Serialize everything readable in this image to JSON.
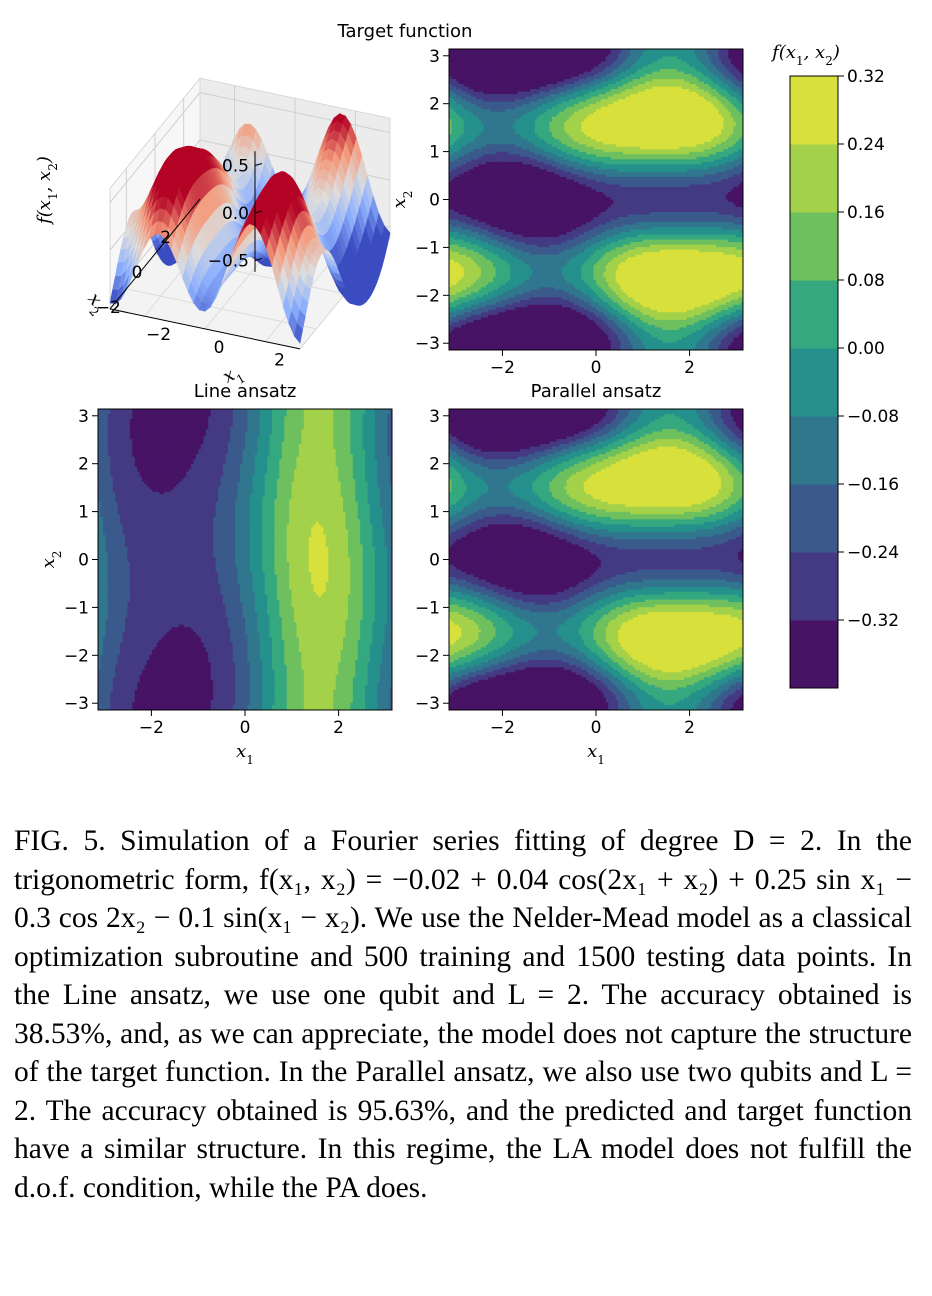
{
  "figure_label": "FIG. 5.",
  "caption": "Simulation of a Fourier series fitting of degree D = 2. In the trigonometric form, f(x₁, x₂) = −0.02 + 0.04 cos(2x₁ + x₂) + 0.25 sin x₁ − 0.3 cos 2x₂ − 0.1 sin(x₁ − x₂). We use the Nelder-Mead model as a classical optimization subroutine and 500 training and 1500 testing data points. In the Line ansatz, we use one qubit and L = 2. The accuracy obtained is 38.53%, and, as we can appreciate, the model does not capture the structure of the target function. In the Parallel ansatz, we also use two qubits and L = 2. The accuracy obtained is 95.63%, and the predicted and target function have a similar structure. In this regime, the LA model does not fulfill the d.o.f. condition, while the PA does.",
  "chart_data": [
    {
      "type": "surface",
      "title": "",
      "zlabel": "f(x1, x2)",
      "xlabel": "x1",
      "ylabel": "x2",
      "ztick_labels": [
        "0.5",
        "0.0",
        "−0.5"
      ],
      "x1_tick_labels": [
        "−2",
        "0",
        "2"
      ],
      "x2_tick_labels": [
        "−2",
        "0",
        "2"
      ],
      "colormap": "coolwarm"
    },
    {
      "type": "heatmap",
      "title": "Target function",
      "xlabel": "",
      "ylabel": "x2",
      "xlim": [
        -3.14159,
        3.14159
      ],
      "ylim": [
        -3.14159,
        3.14159
      ],
      "xtick_labels": [
        "−2",
        "0",
        "2"
      ],
      "ytick_labels": [
        "3",
        "2",
        "1",
        "0",
        "−1",
        "−2",
        "−3"
      ],
      "model": "target",
      "function": "f(x1,x2) = -0.02 + 0.04 cos(2x1 + x2) + 0.25 sin x1 - 0.3 cos 2x2 - 0.1 sin(x1 - x2)"
    },
    {
      "type": "heatmap",
      "title": "Line ansatz",
      "xlabel": "x1",
      "ylabel": "x2",
      "xlim": [
        -3.14159,
        3.14159
      ],
      "ylim": [
        -3.14159,
        3.14159
      ],
      "xtick_labels": [
        "−2",
        "0",
        "2"
      ],
      "ytick_labels": [
        "3",
        "2",
        "1",
        "0",
        "−1",
        "−2",
        "−3"
      ],
      "model": "line",
      "accuracy": "38.53%"
    },
    {
      "type": "heatmap",
      "title": "Parallel ansatz",
      "xlabel": "x1",
      "ylabel": "",
      "xlim": [
        -3.14159,
        3.14159
      ],
      "ylim": [
        -3.14159,
        3.14159
      ],
      "xtick_labels": [
        "−2",
        "0",
        "2"
      ],
      "ytick_labels": [
        "3",
        "2",
        "1",
        "0",
        "−1",
        "−2",
        "−3"
      ],
      "model": "parallel",
      "accuracy": "95.63%"
    }
  ],
  "colorbar": {
    "label": "f(x1, x2)",
    "levels": [
      -0.32,
      -0.24,
      -0.16,
      -0.08,
      0.0,
      0.08,
      0.16,
      0.24,
      0.32
    ],
    "tick_labels": [
      "0.32",
      "0.24",
      "0.16",
      "0.08",
      "0.00",
      "−0.08",
      "−0.16",
      "−0.24",
      "−0.32"
    ],
    "colors": [
      "#471365",
      "#443a83",
      "#3b5a8c",
      "#30778e",
      "#25908c",
      "#35a87f",
      "#6ec05f",
      "#a3d14a",
      "#d8e03c"
    ]
  }
}
